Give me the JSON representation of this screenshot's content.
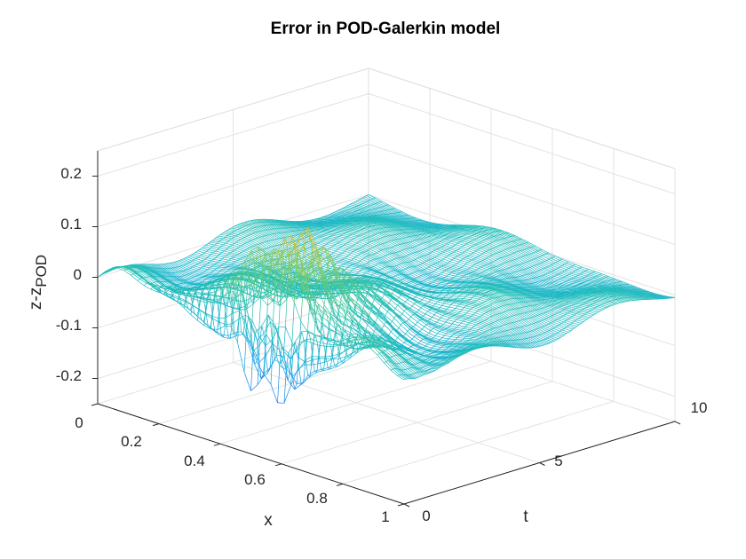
{
  "chart_data": {
    "type": "surface",
    "title": "Error in POD-Galerkin model",
    "xlabel": "x",
    "ylabel": "t",
    "zlabel": "z-z",
    "zlabel_subscript": "POD",
    "xlim": [
      0,
      1
    ],
    "ylim": [
      0,
      10
    ],
    "zlim": [
      -0.25,
      0.25
    ],
    "x_ticks": [
      "0",
      "0.2",
      "0.4",
      "0.6",
      "0.8",
      "1"
    ],
    "y_ticks": [
      "0",
      "5",
      "10"
    ],
    "z_ticks": [
      "0.2",
      "0.1",
      "0",
      "-0.1",
      "-0.2"
    ],
    "grid": true,
    "colormap": "parula",
    "render": "mesh",
    "surface_features": [
      {
        "x": 0.55,
        "t": 1.0,
        "z": 0.2,
        "description_units": "peak near x≈0.55, t≈1"
      },
      {
        "x": 0.55,
        "t": 0.1,
        "z": -0.25,
        "description_units": "trough near x≈0.55, t≈0"
      }
    ]
  }
}
